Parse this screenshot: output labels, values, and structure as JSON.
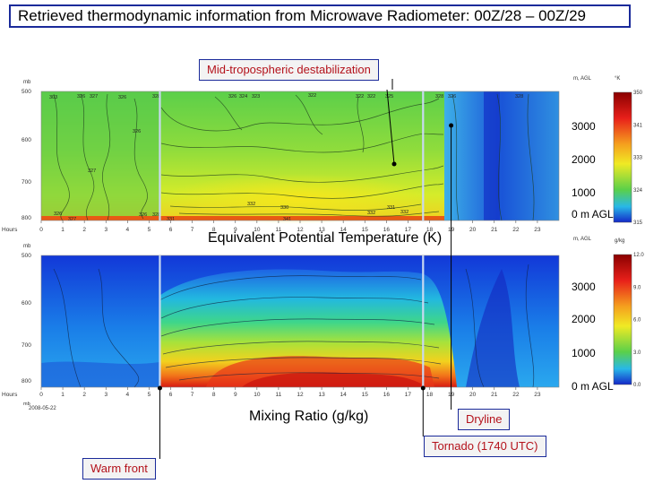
{
  "title": "Retrieved thermodynamic information from Microwave Radiometer: 00Z/28 – 00Z/29",
  "callouts": {
    "destab": "Mid-tropospheric destabilization",
    "dryline": "Dryline",
    "tornado": "Tornado (1740 UTC)",
    "warm_front": "Warm front"
  },
  "colors": {
    "callout_border": "#1a2a9a",
    "callout_text": "#b4121b",
    "marker_line": "#c8d8f0"
  },
  "chart_data": [
    {
      "type": "heatmap",
      "title": "Equivalent Potential Temperature (K)",
      "y_pressure_label": "mb",
      "y_pressure_ticks": [
        "500",
        "600",
        "700",
        "800"
      ],
      "x_label": "Hours",
      "x_ticks": [
        "0",
        "1",
        "2",
        "3",
        "4",
        "5",
        "6",
        "7",
        "8",
        "9",
        "10",
        "11",
        "12",
        "13",
        "14",
        "15",
        "16",
        "17",
        "18",
        "19",
        "20",
        "21",
        "22",
        "23"
      ],
      "xlim": [
        0,
        24
      ],
      "height_axis_label": "m, AGL",
      "height_ticks": [
        "3000",
        "2000",
        "1000",
        "0 m AGL"
      ],
      "colorbar_unit": "°K",
      "colorbar_ticks": [
        "350",
        "341",
        "333",
        "324",
        "315"
      ],
      "contour_labels": [
        "303",
        "326",
        "327",
        "326",
        "326",
        "328",
        "326",
        "324",
        "323",
        "322",
        "322",
        "322",
        "325",
        "328",
        "326",
        "327",
        "326",
        "326",
        "328",
        "328",
        "332",
        "330",
        "341",
        "332",
        "331",
        "332",
        "331"
      ],
      "markers_hours": [
        5.5,
        17.7,
        19.0
      ]
    },
    {
      "type": "heatmap",
      "title": "Mixing Ratio (g/kg)",
      "y_pressure_label": "mb",
      "y_pressure_ticks": [
        "500",
        "600",
        "700",
        "800"
      ],
      "x_label": "Hours",
      "x_ticks": [
        "0",
        "1",
        "2",
        "3",
        "4",
        "5",
        "6",
        "7",
        "8",
        "9",
        "10",
        "11",
        "12",
        "13",
        "14",
        "15",
        "16",
        "17",
        "18",
        "19",
        "20",
        "21",
        "22",
        "23"
      ],
      "xlim": [
        0,
        24
      ],
      "date_label": "2008-05-22",
      "height_axis_label": "m, AGL",
      "height_ticks": [
        "3000",
        "2000",
        "1000",
        "0 m AGL"
      ],
      "colorbar_unit": "g/kg",
      "colorbar_ticks": [
        "12.0",
        "9.0",
        "6.0",
        "3.0",
        "0.0"
      ],
      "markers_hours": [
        5.5,
        17.7,
        19.0
      ]
    }
  ]
}
